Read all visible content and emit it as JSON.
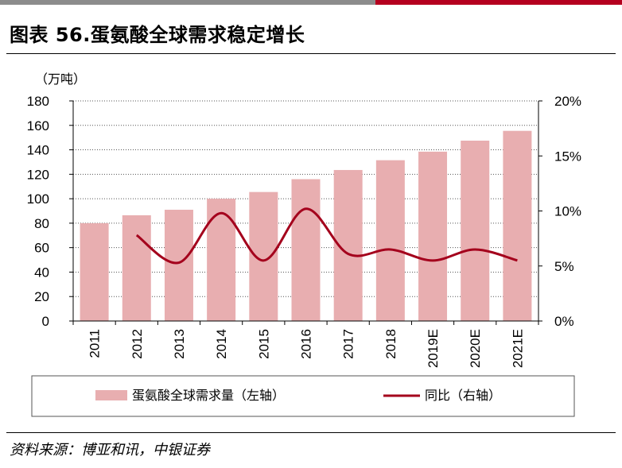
{
  "figure": {
    "title": "图表 56.蛋氨酸全球需求稳定增长",
    "source": "资料来源：博亚和讯，中银证券"
  },
  "colors": {
    "bar": "#e8aeb0",
    "line": "#a4001c",
    "top_bar_grey": "#8c8c8c",
    "top_bar_red": "#b5001f"
  },
  "chart_data": {
    "type": "bar",
    "title": "",
    "unit_label": "（万吨）",
    "categories": [
      "2011",
      "2012",
      "2013",
      "2014",
      "2015",
      "2016",
      "2017",
      "2018",
      "2019E",
      "2020E",
      "2021E"
    ],
    "series": [
      {
        "name": "蛋氨酸全球需求量（左轴）",
        "type": "bar",
        "axis": "left",
        "values": [
          80,
          86.5,
          91,
          100,
          105.5,
          116,
          123.5,
          131.5,
          138.5,
          147.5,
          155.5
        ]
      },
      {
        "name": "同比（右轴）",
        "type": "line",
        "axis": "right",
        "values": [
          null,
          7.8,
          5.3,
          9.8,
          5.5,
          10.2,
          6.1,
          6.5,
          5.5,
          6.5,
          5.5
        ]
      }
    ],
    "y_left": {
      "min": 0,
      "max": 180,
      "step": 20,
      "ticks": [
        "0",
        "20",
        "40",
        "60",
        "80",
        "100",
        "120",
        "140",
        "160",
        "180"
      ]
    },
    "y_right": {
      "min": 0,
      "max": 20,
      "step": 5,
      "ticks": [
        "0%",
        "5%",
        "10%",
        "15%",
        "20%"
      ]
    },
    "grid": "horizontal-dotted",
    "legend_position": "bottom"
  }
}
